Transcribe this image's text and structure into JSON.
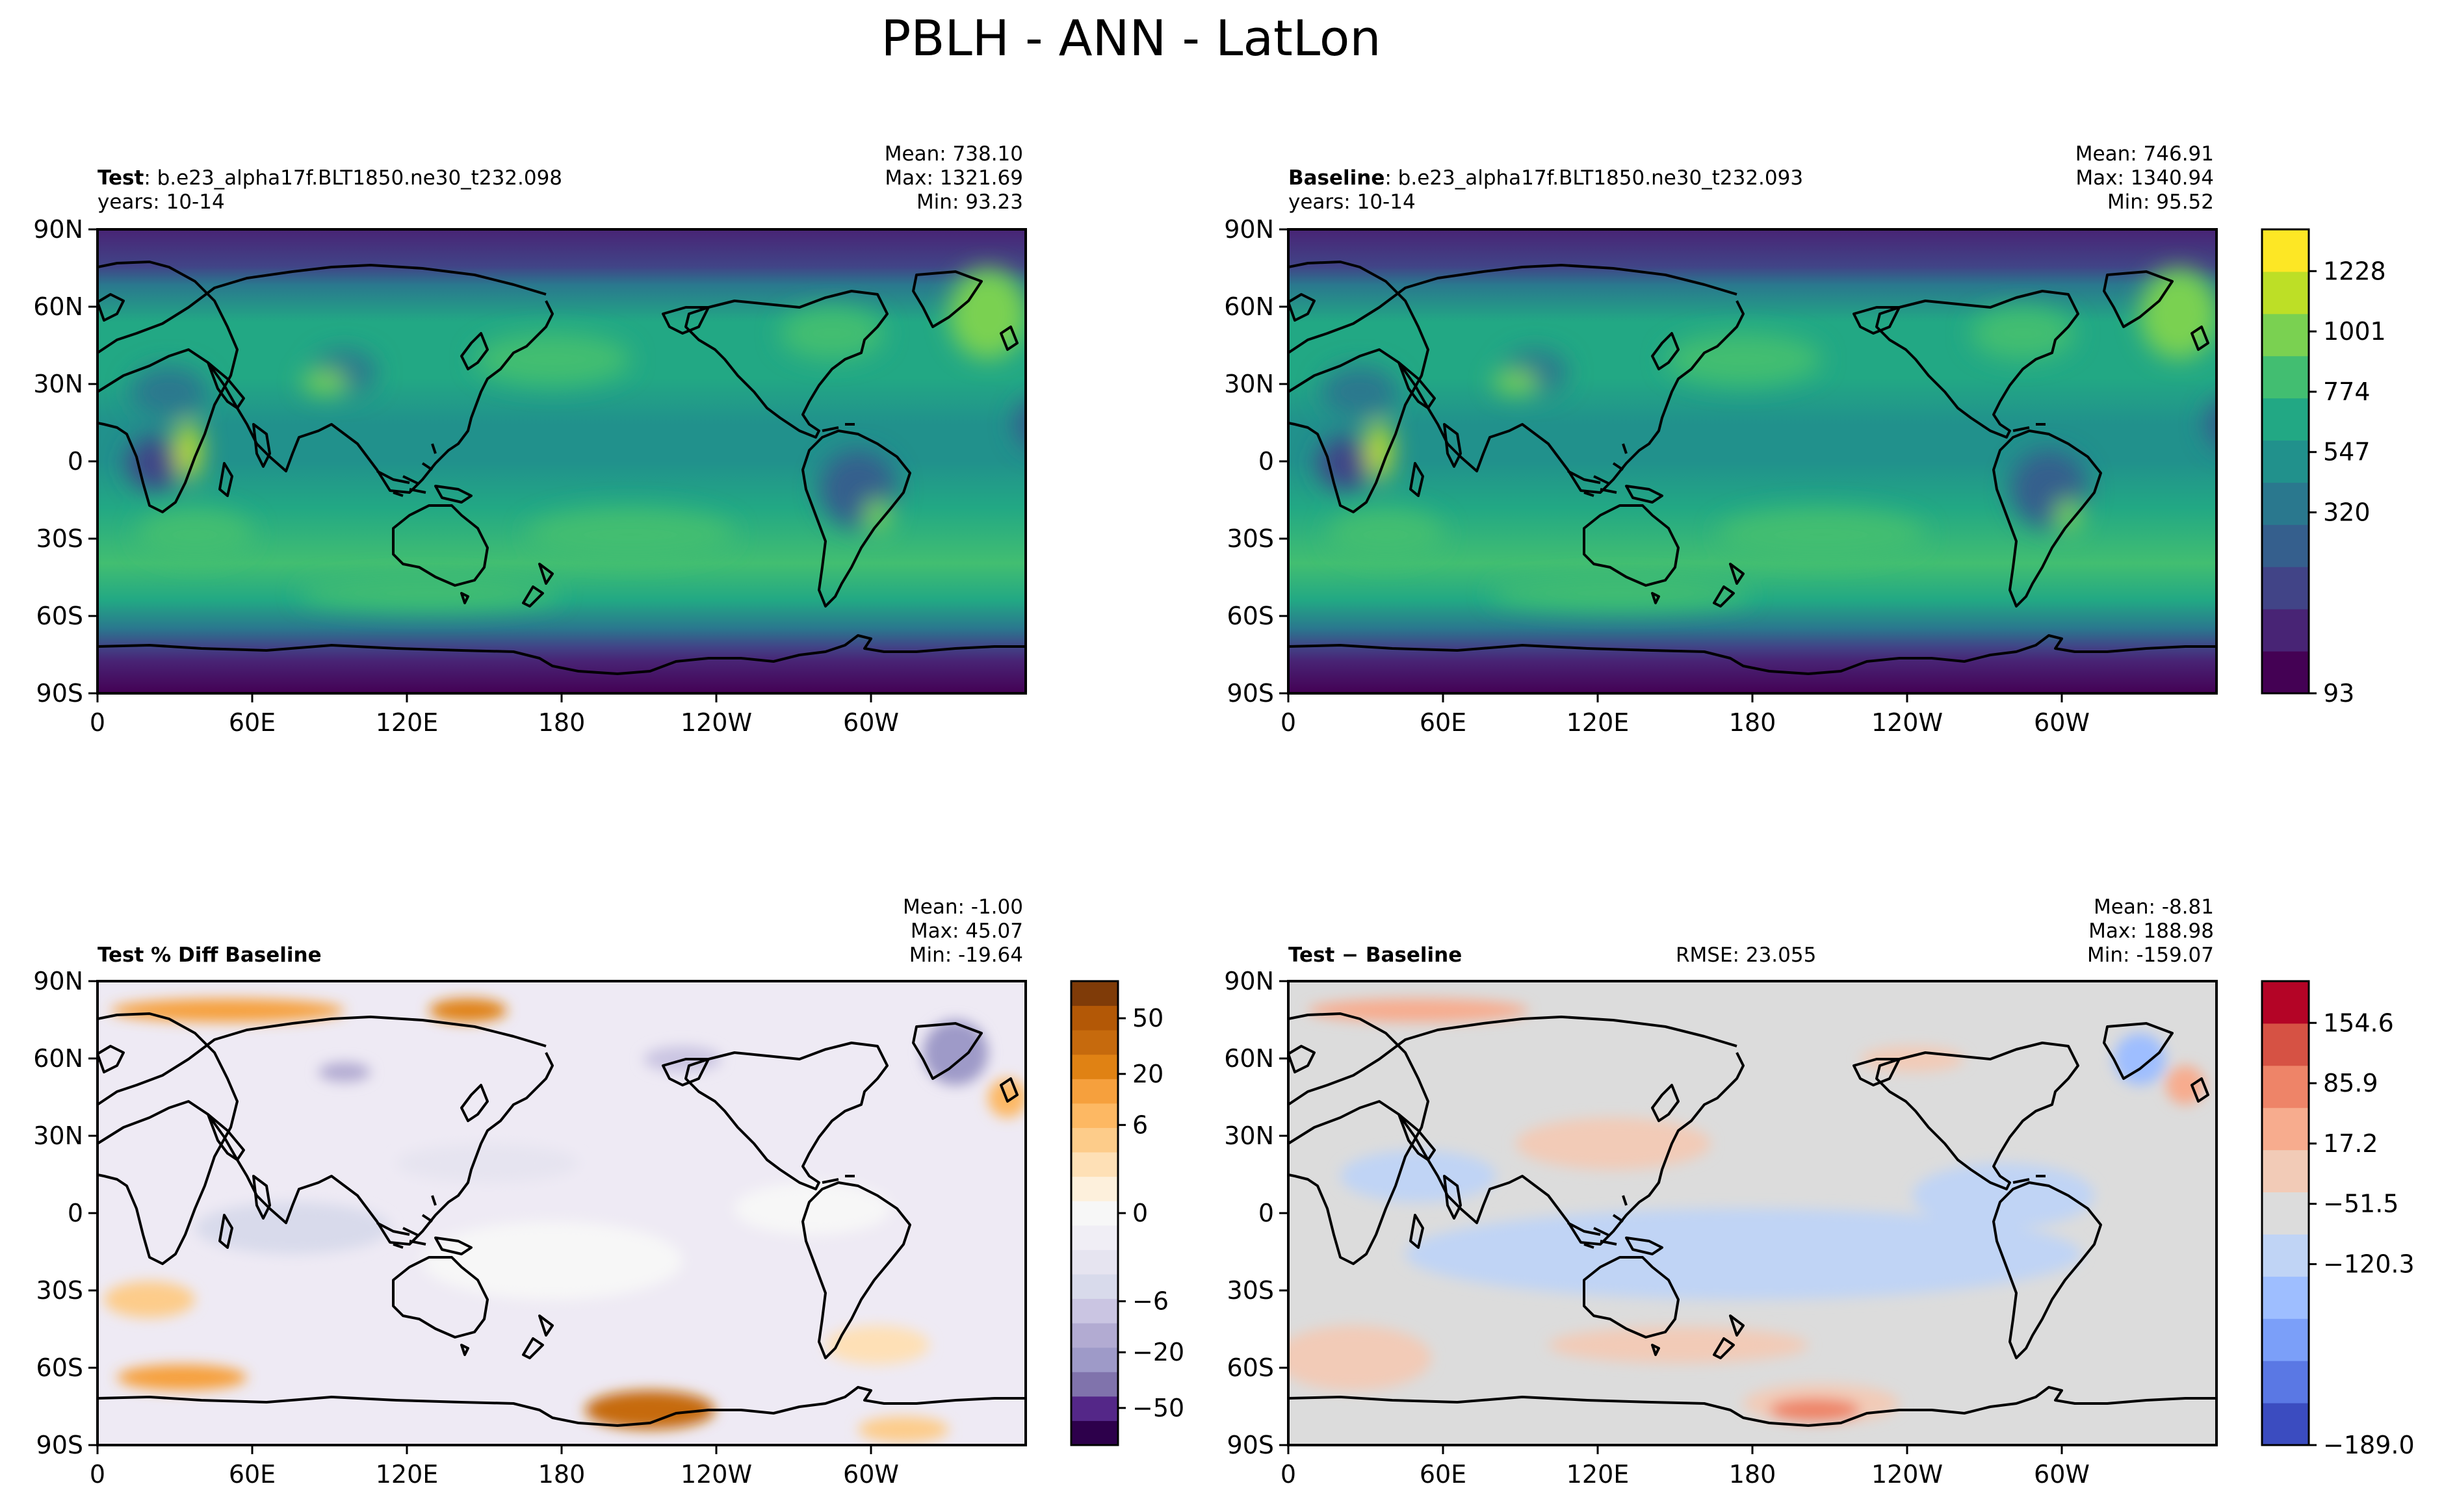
{
  "figure": {
    "title": "PBLH - ANN - LatLon"
  },
  "axes_ticks": {
    "x": [
      "0",
      "60E",
      "120E",
      "180",
      "120W",
      "60W"
    ],
    "y": [
      "90N",
      "60N",
      "30N",
      "0",
      "30S",
      "60S",
      "90S"
    ]
  },
  "panels": {
    "test": {
      "label_bold": "Test",
      "label_rest": ": b.e23_alpha17f.BLT1850.ne30_t232.098",
      "years": "years: 10-14",
      "mean": "Mean: 738.10",
      "max": "Max: 1321.69",
      "min": "Min: 93.23"
    },
    "baseline": {
      "label_bold": "Baseline",
      "label_rest": ": b.e23_alpha17f.BLT1850.ne30_t232.093",
      "years": "years: 10-14",
      "mean": "Mean: 746.91",
      "max": "Max: 1340.94",
      "min": "Min: 95.52"
    },
    "pctdiff": {
      "label_bold": "Test % Diff Baseline",
      "mean": "Mean: -1.00",
      "max": "Max: 45.07",
      "min": "Min: -19.64"
    },
    "diff": {
      "label_bold": "Test − Baseline",
      "rmse": "RMSE: 23.055",
      "mean": "Mean: -8.81",
      "max": "Max: 188.98",
      "min": "Min: -159.07"
    }
  },
  "colorbars": {
    "main": {
      "labels": [
        "1228",
        "1001",
        "774",
        "547",
        "320",
        "93"
      ],
      "colors": [
        "#440154",
        "#482475",
        "#414487",
        "#355f8d",
        "#2a788e",
        "#21918c",
        "#22a884",
        "#42be71",
        "#7ad151",
        "#bddf26",
        "#fde725"
      ]
    },
    "pct": {
      "labels": [
        "50",
        "20",
        "6",
        "0",
        "−6",
        "−20",
        "−50"
      ],
      "colors": [
        "#2d004b",
        "#542788",
        "#8073ac",
        "#9e9ac8",
        "#b2abd2",
        "#cac5e2",
        "#d8daeb",
        "#e6e4f0",
        "#f0eef5",
        "#f7f7f7",
        "#fdf0dc",
        "#fee0b6",
        "#fdcc8a",
        "#fdb863",
        "#f6a03d",
        "#e08214",
        "#c66a0d",
        "#b35806",
        "#7f3b08"
      ]
    },
    "diff": {
      "labels": [
        "154.6",
        "85.9",
        "17.2",
        "−51.5",
        "−120.3",
        "−189.0"
      ],
      "colors": [
        "#3b4cc0",
        "#5a78e4",
        "#7b9ff9",
        "#9ebeff",
        "#c0d4f5",
        "#dcdcdc",
        "#f2cbb7",
        "#f7ac8e",
        "#ee8468",
        "#d65244",
        "#b40426"
      ]
    }
  },
  "chart_data": [
    {
      "type": "heatmap",
      "panel": "test",
      "variable": "PBLH",
      "stats": {
        "mean": 738.1,
        "max": 1321.69,
        "min": 93.23
      },
      "xticks": [
        "0",
        "60E",
        "120E",
        "180",
        "120W",
        "60W"
      ],
      "yticks": [
        "90N",
        "60N",
        "30N",
        "0",
        "30S",
        "60S",
        "90S"
      ],
      "xlim": [
        0,
        360
      ],
      "ylim": [
        -90,
        90
      ],
      "color_levels": [
        93,
        320,
        547,
        774,
        1001,
        1228
      ]
    },
    {
      "type": "heatmap",
      "panel": "baseline",
      "variable": "PBLH",
      "stats": {
        "mean": 746.91,
        "max": 1340.94,
        "min": 95.52
      },
      "xticks": [
        "0",
        "60E",
        "120E",
        "180",
        "120W",
        "60W"
      ],
      "yticks": [
        "90N",
        "60N",
        "30N",
        "0",
        "30S",
        "60S",
        "90S"
      ],
      "xlim": [
        0,
        360
      ],
      "ylim": [
        -90,
        90
      ],
      "color_levels": [
        93,
        320,
        547,
        774,
        1001,
        1228
      ]
    },
    {
      "type": "heatmap",
      "panel": "pctdiff",
      "stats": {
        "mean": -1.0,
        "max": 45.07,
        "min": -19.64
      },
      "xticks": [
        "0",
        "60E",
        "120E",
        "180",
        "120W",
        "60W"
      ],
      "yticks": [
        "90N",
        "60N",
        "30N",
        "0",
        "30S",
        "60S",
        "90S"
      ],
      "xlim": [
        0,
        360
      ],
      "ylim": [
        -90,
        90
      ],
      "color_levels": [
        -50,
        -20,
        -6,
        0,
        6,
        20,
        50
      ]
    },
    {
      "type": "heatmap",
      "panel": "diff",
      "stats": {
        "mean": -8.81,
        "max": 188.98,
        "min": -159.07,
        "rmse": 23.055
      },
      "xticks": [
        "0",
        "60E",
        "120E",
        "180",
        "120W",
        "60W"
      ],
      "yticks": [
        "90N",
        "60N",
        "30N",
        "0",
        "30S",
        "60S",
        "90S"
      ],
      "xlim": [
        0,
        360
      ],
      "ylim": [
        -90,
        90
      ],
      "color_levels": [
        -189.0,
        -120.3,
        -51.5,
        17.2,
        85.9,
        154.6
      ]
    }
  ]
}
